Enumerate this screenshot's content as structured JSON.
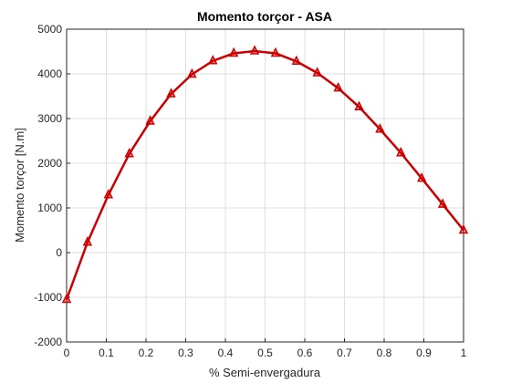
{
  "chart_data": {
    "type": "line",
    "title": "Momento torçor - ASA",
    "xlabel": "% Semi-envergadura",
    "ylabel": "Momento torçor [N.m]",
    "xlim": [
      0,
      1
    ],
    "ylim": [
      -2000,
      5000
    ],
    "xticks": [
      "0",
      "0.1",
      "0.2",
      "0.3",
      "0.4",
      "0.5",
      "0.6",
      "0.7",
      "0.8",
      "0.9",
      "1"
    ],
    "yticks": [
      "-2000",
      "-1000",
      "0",
      "1000",
      "2000",
      "3000",
      "4000",
      "5000"
    ],
    "grid": true,
    "marker": "triangle",
    "series": [
      {
        "color": "#cc0000",
        "x": [
          0,
          0.0526,
          0.1053,
          0.1579,
          0.2105,
          0.2632,
          0.3158,
          0.3684,
          0.4211,
          0.4737,
          0.5263,
          0.5789,
          0.6316,
          0.6842,
          0.7368,
          0.7895,
          0.8421,
          0.8947,
          0.9474,
          1
        ],
        "values": [
          -1050,
          230,
          1290,
          2210,
          2940,
          3550,
          3990,
          4290,
          4460,
          4510,
          4460,
          4280,
          4020,
          3680,
          3260,
          2760,
          2230,
          1660,
          1080,
          500
        ]
      }
    ]
  }
}
